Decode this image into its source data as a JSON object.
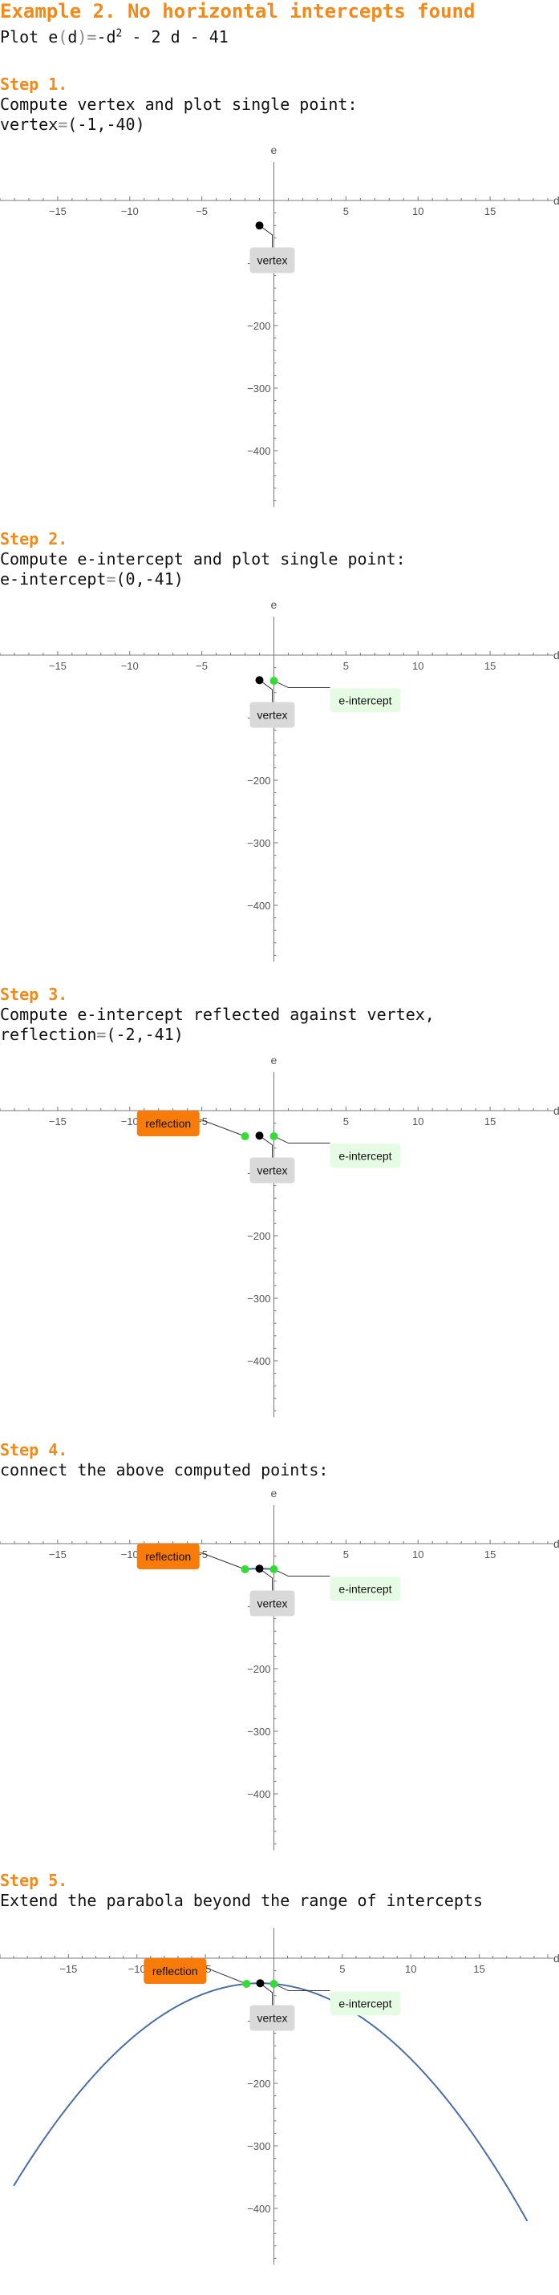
{
  "header": {
    "title": "Example 2. No horizontal intercepts found",
    "plot_prefix": "Plot ",
    "function_name": "e",
    "function_var": "d",
    "function_rhs_start": "-d",
    "function_exponent": "2",
    "function_rhs_end": " - 2 d - 41"
  },
  "steps": [
    {
      "heading": "Step 1.",
      "line1": "Compute vertex and plot single point:",
      "line2_label": "vertex",
      "line2_value": "(-1,-40)"
    },
    {
      "heading": "Step 2.",
      "line1": "Compute e-intercept and plot single point:",
      "line2_label": "e-intercept",
      "line2_value": "(0,-41)"
    },
    {
      "heading": "Step 3.",
      "line1": "Compute e-intercept reflected against vertex,",
      "line2_label": "reflection",
      "line2_value": "(-2,-41)"
    },
    {
      "heading": "Step 4.",
      "line1": "connect the above computed points:",
      "line2_label": "",
      "line2_value": ""
    },
    {
      "heading": "Step 5.",
      "line1": "Extend the parabola beyond the range of intercepts",
      "line2_label": "",
      "line2_value": ""
    }
  ],
  "colors": {
    "accent": "#f28a1a",
    "vertex_point": "#000000",
    "intercept_point": "#33dd33",
    "vertex_box": "#d9d9d9",
    "intercept_box": "#e6fbe3",
    "reflection_box": "#f97c0b",
    "curve": "#4a6fa5",
    "axis": "#777777"
  },
  "chart_data": [
    {
      "type": "scatter",
      "xlabel": "d",
      "ylabel": "e",
      "xlim": [
        -19,
        19
      ],
      "ylim": [
        -490,
        50
      ],
      "xticks": [
        -15,
        -10,
        -5,
        5,
        10,
        15
      ],
      "yticks": [
        -100,
        -200,
        -300,
        -400
      ],
      "points": [
        {
          "x": -1,
          "y": -40,
          "kind": "vertex",
          "label": "vertex"
        }
      ],
      "curve": null
    },
    {
      "type": "scatter",
      "xlabel": "d",
      "ylabel": "e",
      "xlim": [
        -19,
        19
      ],
      "ylim": [
        -490,
        50
      ],
      "xticks": [
        -15,
        -10,
        -5,
        5,
        10,
        15
      ],
      "yticks": [
        -100,
        -200,
        -300,
        -400
      ],
      "points": [
        {
          "x": -1,
          "y": -40,
          "kind": "vertex",
          "label": "vertex"
        },
        {
          "x": 0,
          "y": -41,
          "kind": "intercept",
          "label": "e-intercept"
        }
      ],
      "curve": null
    },
    {
      "type": "scatter",
      "xlabel": "d",
      "ylabel": "e",
      "xlim": [
        -19,
        19
      ],
      "ylim": [
        -490,
        50
      ],
      "xticks": [
        -15,
        -10,
        -5,
        5,
        10,
        15
      ],
      "yticks": [
        -100,
        -200,
        -300,
        -400
      ],
      "points": [
        {
          "x": -1,
          "y": -40,
          "kind": "vertex",
          "label": "vertex"
        },
        {
          "x": 0,
          "y": -41,
          "kind": "intercept",
          "label": "e-intercept"
        },
        {
          "x": -2,
          "y": -41,
          "kind": "reflection",
          "label": "reflection"
        }
      ],
      "curve": null
    },
    {
      "type": "line",
      "xlabel": "d",
      "ylabel": "e",
      "xlim": [
        -19,
        19
      ],
      "ylim": [
        -490,
        50
      ],
      "xticks": [
        -15,
        -10,
        -5,
        5,
        10,
        15
      ],
      "yticks": [
        -100,
        -200,
        -300,
        -400
      ],
      "points": [
        {
          "x": -1,
          "y": -40,
          "kind": "vertex",
          "label": "vertex"
        },
        {
          "x": 0,
          "y": -41,
          "kind": "intercept",
          "label": "e-intercept"
        },
        {
          "x": -2,
          "y": -41,
          "kind": "reflection",
          "label": "reflection"
        }
      ],
      "curve": {
        "from": -2,
        "to": 0
      }
    },
    {
      "type": "line",
      "xlabel": "d",
      "ylabel": "e",
      "xlim": [
        -20,
        20
      ],
      "ylim": [
        -490,
        50
      ],
      "xticks": [
        -15,
        -10,
        -5,
        5,
        10,
        15
      ],
      "yticks": [
        -100,
        -200,
        -300,
        -400
      ],
      "points": [
        {
          "x": -1,
          "y": -40,
          "kind": "vertex",
          "label": "vertex"
        },
        {
          "x": 0,
          "y": -41,
          "kind": "intercept",
          "label": "e-intercept"
        },
        {
          "x": -2,
          "y": -41,
          "kind": "reflection",
          "label": "reflection"
        }
      ],
      "curve": {
        "from": -19,
        "to": 18.5
      }
    }
  ]
}
